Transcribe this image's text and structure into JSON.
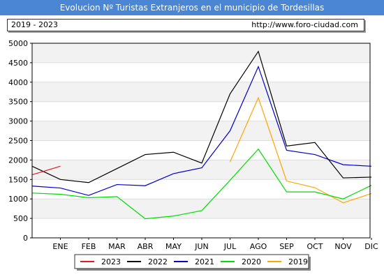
{
  "header": {
    "title": "Evolucion Nº Turistas Extranjeros en el municipio de Tordesillas",
    "period": "2019 - 2023",
    "url": "http://www.foro-ciudad.com"
  },
  "chart_data": {
    "type": "line",
    "title": "Evolucion Nº Turistas Extranjeros en el municipio de Tordesillas",
    "categories": [
      "ENE",
      "FEB",
      "MAR",
      "ABR",
      "MAY",
      "JUN",
      "JUL",
      "AGO",
      "SEP",
      "OCT",
      "NOV",
      "DIC"
    ],
    "x_start_label": "",
    "yticks": [
      0,
      500,
      1000,
      1500,
      2000,
      2500,
      3000,
      3500,
      4000,
      4500,
      5000
    ],
    "ylim": [
      0,
      5000
    ],
    "grid": "horizontal bands",
    "legend_position": "bottom",
    "series": [
      {
        "name": "2023",
        "color": "#e41a1c",
        "x": [
          -1,
          0
        ],
        "values": [
          1620,
          1840
        ]
      },
      {
        "name": "2022",
        "color": "#000000",
        "x": [
          -1,
          0,
          1,
          2,
          3,
          4,
          5,
          6,
          7,
          8,
          9,
          10,
          11
        ],
        "values": [
          1840,
          1500,
          1420,
          1780,
          2140,
          2200,
          1920,
          3700,
          4790,
          2360,
          2450,
          1540,
          1560
        ]
      },
      {
        "name": "2021",
        "color": "#0000cc",
        "x": [
          -1,
          0,
          1,
          2,
          3,
          4,
          5,
          6,
          7,
          8,
          9,
          10,
          11
        ],
        "values": [
          1330,
          1280,
          1090,
          1370,
          1340,
          1650,
          1800,
          2750,
          4400,
          2250,
          2140,
          1880,
          1840
        ]
      },
      {
        "name": "2020",
        "color": "#00dd00",
        "x": [
          -1,
          0,
          1,
          2,
          3,
          4,
          5,
          6,
          7,
          8,
          9,
          10,
          11
        ],
        "values": [
          1150,
          1120,
          1030,
          1060,
          490,
          560,
          700,
          1480,
          2280,
          1180,
          1180,
          1000,
          1350
        ]
      },
      {
        "name": "2019",
        "color": "#ffa500",
        "x": [
          6,
          7,
          8,
          9,
          10,
          11
        ],
        "values": [
          1950,
          3600,
          1460,
          1290,
          900,
          1140
        ]
      }
    ]
  }
}
